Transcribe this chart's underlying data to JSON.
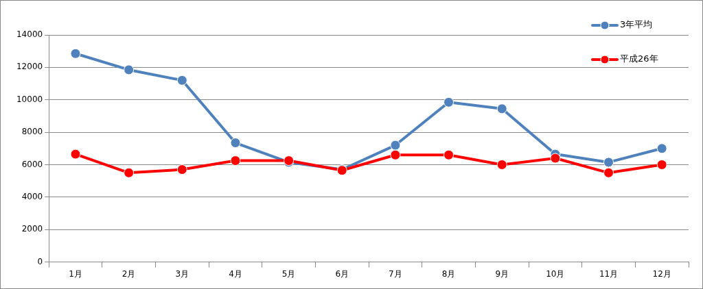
{
  "chart_data": {
    "type": "line",
    "categories": [
      "1月",
      "2月",
      "3月",
      "4月",
      "5月",
      "6月",
      "7月",
      "8月",
      "9月",
      "10月",
      "11月",
      "12月"
    ],
    "series": [
      {
        "name": "3年平均",
        "color": "#4f81bd",
        "values": [
          12850,
          11850,
          11200,
          7350,
          6150,
          5700,
          7200,
          9850,
          9450,
          6650,
          6150,
          7000
        ]
      },
      {
        "name": "平成26年",
        "color": "#ff0000",
        "values": [
          6650,
          5500,
          5700,
          6250,
          6250,
          5650,
          6600,
          6600,
          6000,
          6400,
          5500,
          6000
        ]
      }
    ],
    "ylim": [
      0,
      14000
    ],
    "yticks": [
      0,
      2000,
      4000,
      6000,
      8000,
      10000,
      12000,
      14000
    ],
    "grid": "y",
    "legend": "top right",
    "marker": "circle",
    "line_style": "solid"
  }
}
